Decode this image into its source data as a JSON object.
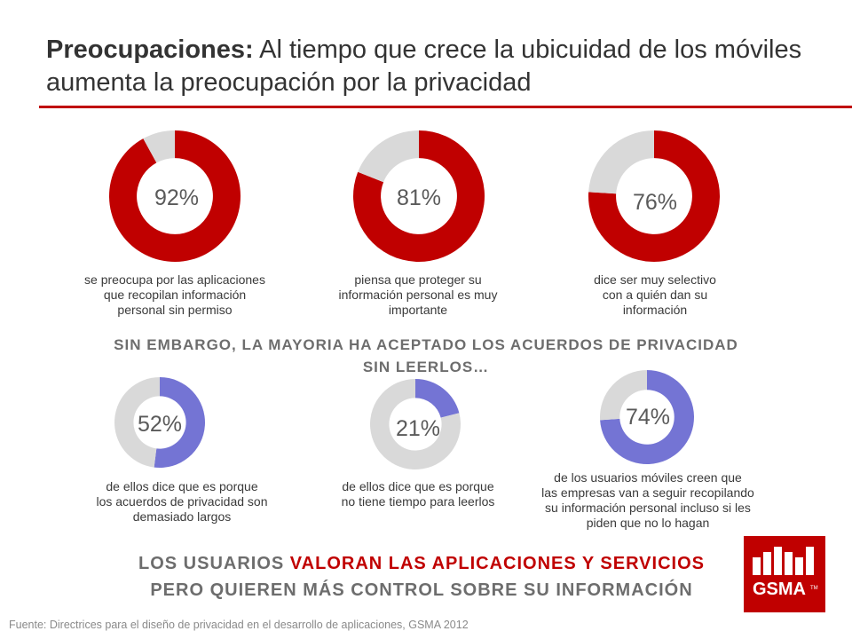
{
  "title": {
    "bold": "Preocupaciones:",
    "rest": " Al tiempo que crece la ubicuidad de los móviles aumenta la preocupación por la privacidad"
  },
  "mid_heading": {
    "line1": "SIN EMBARGO, LA MAYORIA HA ACEPTADO LOS ACUERDOS DE PRIVACIDAD",
    "line2": "SIN LEERLOS…"
  },
  "bottom_message": {
    "part1": "LOS USUARIOS ",
    "accent": "VALORAN LAS APLICACIONES Y SERVICIOS",
    "line2": "PERO QUIEREN MÁS CONTROL SOBRE SU INFORMACIÓN"
  },
  "source": "Fuente: Directrices para el diseño de privacidad en el desarrollo de aplicaciones, GSMA 2012",
  "logo": {
    "text": "GSMA",
    "trademark": "TM"
  },
  "colors": {
    "red": "#c00000",
    "purple": "#7474d4",
    "grey": "#d9d9d9",
    "accent_text": "#c00000"
  },
  "chart_data": [
    {
      "type": "pie",
      "variant": "donut",
      "value": 92,
      "label": "92%",
      "caption": [
        "se preocupa por las aplicaciones",
        "que recopilan información",
        "personal sin permiso"
      ]
    },
    {
      "type": "pie",
      "variant": "donut",
      "value": 81,
      "label": "81%",
      "caption": [
        "piensa que proteger su",
        "información personal es muy",
        "importante"
      ]
    },
    {
      "type": "pie",
      "variant": "donut",
      "value": 76,
      "label": "76%",
      "caption": [
        "dice ser muy selectivo",
        "con a quién dan su",
        "información"
      ]
    },
    {
      "type": "pie",
      "variant": "donut",
      "value": 52,
      "label": "52%",
      "caption": [
        "de ellos dice que es porque",
        "los acuerdos de privacidad son",
        "demasiado largos"
      ]
    },
    {
      "type": "pie",
      "variant": "donut",
      "value": 21,
      "label": "21%",
      "caption": [
        "de ellos dice que es porque",
        "no tiene tiempo para leerlos"
      ]
    },
    {
      "type": "pie",
      "variant": "donut",
      "value": 74,
      "label": "74%",
      "caption": [
        "de los usuarios móviles creen que",
        "las empresas van a seguir recopilando",
        "su información personal incluso si les",
        "piden que no lo hagan"
      ]
    }
  ]
}
